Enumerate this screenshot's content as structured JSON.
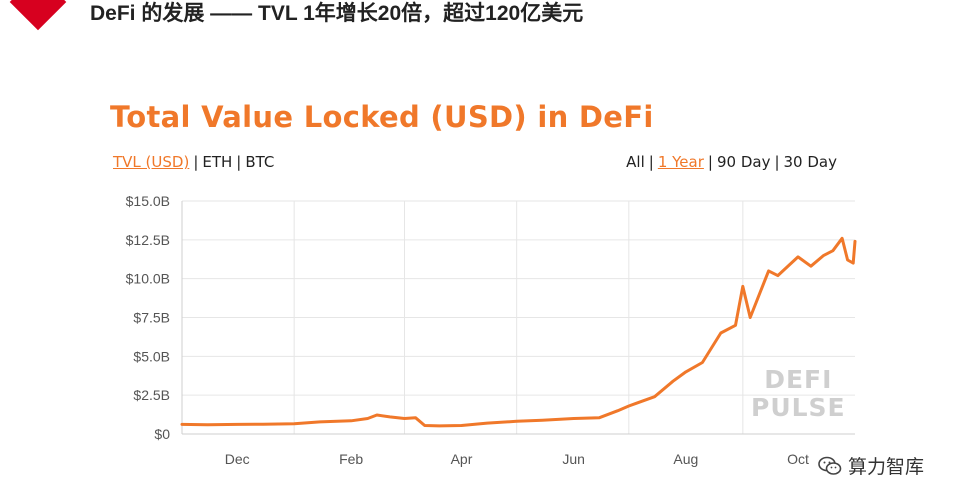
{
  "slide": {
    "title": "DeFi 的发展 ——  TVL 1年增长20倍，超过120亿美元"
  },
  "chart": {
    "title": "Total Value Locked (USD) in DeFi",
    "metric_options": [
      "TVL (USD)",
      "ETH",
      "BTC"
    ],
    "metric_active": "TVL (USD)",
    "range_options": [
      "All",
      "1 Year",
      "90 Day",
      "30 Day"
    ],
    "range_active": "1 Year",
    "watermark": [
      "DEFI",
      "PULSE"
    ],
    "line_color": "#f0782a"
  },
  "footer": {
    "source": "算力智库",
    "icon": "wechat-icon"
  },
  "chart_data": {
    "type": "line",
    "title": "Total Value Locked (USD) in DeFi",
    "xlabel": "",
    "ylabel": "",
    "x_tick_labels": [
      "Dec",
      "Feb",
      "Apr",
      "Jun",
      "Aug",
      "Oct"
    ],
    "y_tick_labels": [
      "$0",
      "$2.5B",
      "$5.0B",
      "$7.5B",
      "$10.0B",
      "$12.5B",
      "$15.0B"
    ],
    "ylim": [
      0,
      15
    ],
    "y_unit": "billion USD",
    "grid": true,
    "series": [
      {
        "values": [
          [
            "2019-11-01",
            0.62
          ],
          [
            "2019-11-15",
            0.6
          ],
          [
            "2019-12-01",
            0.62
          ],
          [
            "2019-12-15",
            0.63
          ],
          [
            "2020-01-01",
            0.66
          ],
          [
            "2020-01-15",
            0.78
          ],
          [
            "2020-02-01",
            0.85
          ],
          [
            "2020-02-10",
            1.0
          ],
          [
            "2020-02-15",
            1.22
          ],
          [
            "2020-02-22",
            1.1
          ],
          [
            "2020-03-01",
            1.0
          ],
          [
            "2020-03-07",
            1.05
          ],
          [
            "2020-03-12",
            0.55
          ],
          [
            "2020-03-20",
            0.52
          ],
          [
            "2020-04-01",
            0.55
          ],
          [
            "2020-04-15",
            0.7
          ],
          [
            "2020-05-01",
            0.82
          ],
          [
            "2020-05-15",
            0.88
          ],
          [
            "2020-06-01",
            1.0
          ],
          [
            "2020-06-15",
            1.05
          ],
          [
            "2020-06-25",
            1.5
          ],
          [
            "2020-07-01",
            1.8
          ],
          [
            "2020-07-15",
            2.4
          ],
          [
            "2020-07-25",
            3.4
          ],
          [
            "2020-08-01",
            4.0
          ],
          [
            "2020-08-10",
            4.6
          ],
          [
            "2020-08-20",
            6.5
          ],
          [
            "2020-08-28",
            7.0
          ],
          [
            "2020-09-01",
            9.5
          ],
          [
            "2020-09-05",
            7.5
          ],
          [
            "2020-09-10",
            9.0
          ],
          [
            "2020-09-15",
            10.5
          ],
          [
            "2020-09-20",
            10.2
          ],
          [
            "2020-10-01",
            11.4
          ],
          [
            "2020-10-08",
            10.8
          ],
          [
            "2020-10-15",
            11.5
          ],
          [
            "2020-10-20",
            11.8
          ],
          [
            "2020-10-25",
            12.6
          ],
          [
            "2020-10-28",
            11.2
          ],
          [
            "2020-10-31",
            11.0
          ],
          [
            "2020-11-01",
            12.4
          ]
        ]
      }
    ]
  }
}
